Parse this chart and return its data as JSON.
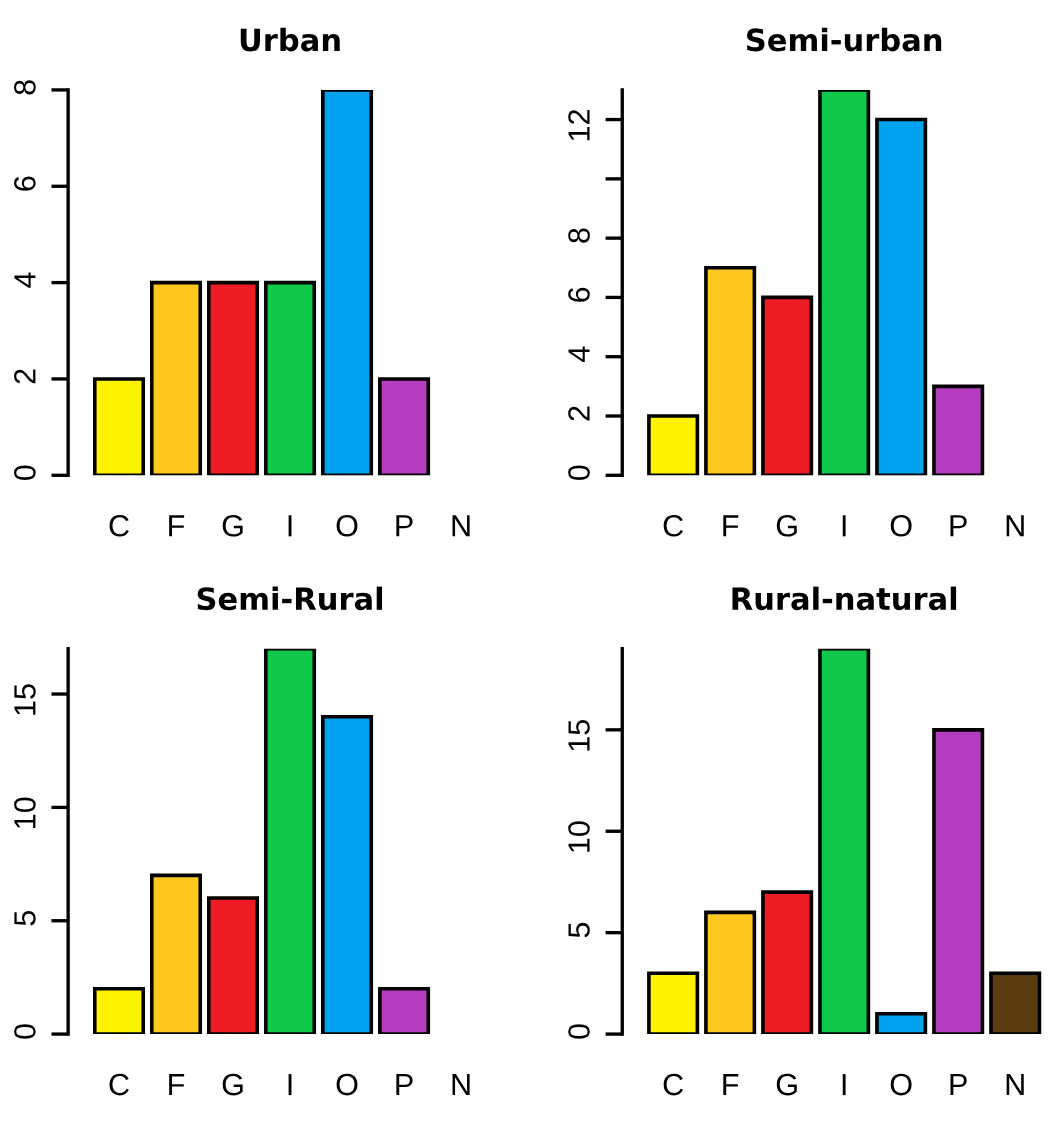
{
  "chart_data": [
    {
      "type": "bar",
      "title": "Urban",
      "categories": [
        "C",
        "F",
        "G",
        "I",
        "O",
        "P",
        "N"
      ],
      "values": [
        2,
        4,
        4,
        4,
        8,
        2,
        null
      ],
      "colors": [
        "#fff200",
        "#ffc81e",
        "#ed1c24",
        "#0fc84a",
        "#00a2ed",
        "#b43cbe",
        "#5a3c10"
      ],
      "ylim": [
        0,
        8
      ],
      "yticks": [
        0,
        2,
        4,
        6,
        8
      ],
      "grid": false,
      "legend": false
    },
    {
      "type": "bar",
      "title": "Semi-urban",
      "categories": [
        "C",
        "F",
        "G",
        "I",
        "O",
        "P",
        "N"
      ],
      "values": [
        2,
        7,
        6,
        13,
        12,
        3,
        null
      ],
      "colors": [
        "#fff200",
        "#ffc81e",
        "#ed1c24",
        "#0fc84a",
        "#00a2ed",
        "#b43cbe",
        "#5a3c10"
      ],
      "ylim": [
        0,
        13
      ],
      "yticks": [
        0,
        2,
        4,
        6,
        8,
        {
          "value": 10,
          "label": null
        },
        12
      ],
      "grid": false,
      "legend": false
    },
    {
      "type": "bar",
      "title": "Semi-Rural",
      "categories": [
        "C",
        "F",
        "G",
        "I",
        "O",
        "P",
        "N"
      ],
      "values": [
        2,
        7,
        6,
        17,
        14,
        2,
        null
      ],
      "colors": [
        "#fff200",
        "#ffc81e",
        "#ed1c24",
        "#0fc84a",
        "#00a2ed",
        "#b43cbe",
        "#5a3c10"
      ],
      "ylim": [
        0,
        17
      ],
      "yticks": [
        0,
        5,
        10,
        15
      ],
      "grid": false,
      "legend": false
    },
    {
      "type": "bar",
      "title": "Rural-natural",
      "categories": [
        "C",
        "F",
        "G",
        "I",
        "O",
        "P",
        "N"
      ],
      "values": [
        3,
        6,
        7,
        19,
        1,
        15,
        3
      ],
      "colors": [
        "#fff200",
        "#ffc81e",
        "#ed1c24",
        "#0fc84a",
        "#00a2ed",
        "#b43cbe",
        "#5a3c10"
      ],
      "ylim": [
        0,
        19
      ],
      "yticks": [
        0,
        5,
        10,
        15
      ],
      "grid": false,
      "legend": false
    }
  ]
}
